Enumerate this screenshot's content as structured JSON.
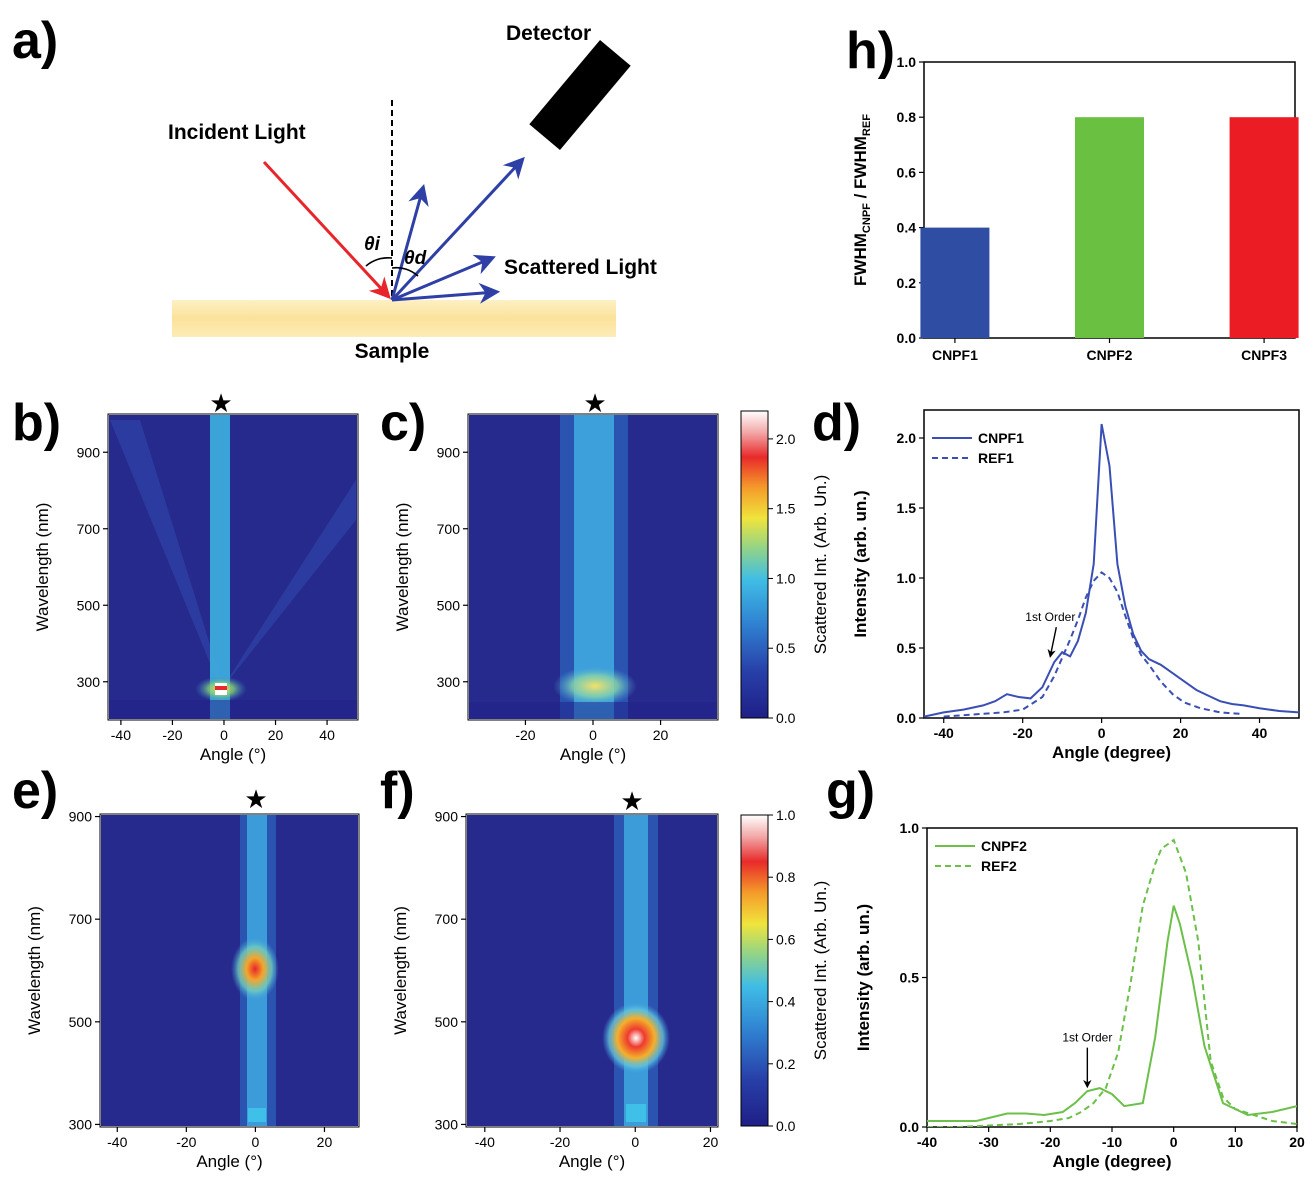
{
  "colors": {
    "blue_line": "#3a4fb4",
    "green_line": "#6cc04a",
    "bar_blue": "#2f4ea3",
    "bar_green": "#69c041",
    "bar_red": "#ec1c24",
    "incident_red": "#e8252b",
    "scatter_blue": "#2e3fa6",
    "sample_yellow": "#fbe39a"
  },
  "panel_a": {
    "letter": "a)",
    "detector": "Detector",
    "incident": "Incident Light",
    "scattered": "Scattered Light",
    "sample": "Sample",
    "theta_i": "θi",
    "theta_d": "θd"
  },
  "letters": {
    "b": "b)",
    "c": "c)",
    "d": "d)",
    "e": "e)",
    "f": "f)",
    "g": "g)",
    "h": "h)"
  },
  "star": "★",
  "chart_data": [
    {
      "id": "h",
      "type": "bar",
      "categories": [
        "CNPF1",
        "CNPF2",
        "CNPF3"
      ],
      "values": [
        0.4,
        0.8,
        0.8
      ],
      "bar_colors": [
        "#2f4ea3",
        "#69c041",
        "#ec1c24"
      ],
      "ylabel": "FWHM_CNPF / FWHM_REF",
      "ylabel_main1": "FWHM",
      "ylabel_sub1": "CNPF",
      "ylabel_mid": " / FWHM",
      "ylabel_sub2": "REF",
      "ylim": [
        0,
        1.0
      ],
      "yticks": [
        0.0,
        0.2,
        0.4,
        0.6,
        0.8,
        1.0
      ]
    },
    {
      "id": "d",
      "type": "line",
      "xlabel": "Angle (degree)",
      "ylabel": "Intensity (arb. un.)",
      "xlim": [
        -45,
        50
      ],
      "ylim": [
        0,
        2.2
      ],
      "xticks": [
        -40,
        -20,
        0,
        20,
        40
      ],
      "yticks": [
        0.0,
        0.5,
        1.0,
        1.5,
        2.0
      ],
      "annotation": "1st Order",
      "legend_position": "top-left",
      "series": [
        {
          "name": "CNPF1",
          "style": "solid",
          "x": [
            -45,
            -40,
            -35,
            -30,
            -27,
            -24,
            -21,
            -18,
            -15,
            -12,
            -10,
            -8,
            -6,
            -4,
            -2,
            0,
            2,
            4,
            6,
            8,
            10,
            12,
            15,
            18,
            21,
            24,
            27,
            30,
            33,
            36,
            40,
            45,
            50
          ],
          "y": [
            0.01,
            0.04,
            0.06,
            0.09,
            0.12,
            0.17,
            0.15,
            0.14,
            0.22,
            0.4,
            0.47,
            0.44,
            0.55,
            0.75,
            1.1,
            2.1,
            1.8,
            1.1,
            0.8,
            0.6,
            0.48,
            0.42,
            0.38,
            0.32,
            0.26,
            0.2,
            0.16,
            0.12,
            0.1,
            0.09,
            0.07,
            0.05,
            0.04
          ]
        },
        {
          "name": "REF1",
          "style": "dashed",
          "x": [
            -40,
            -35,
            -30,
            -25,
            -20,
            -15,
            -12,
            -10,
            -8,
            -6,
            -4,
            -2,
            0,
            2,
            4,
            6,
            8,
            10,
            12,
            15,
            18,
            21,
            25,
            30,
            35
          ],
          "y": [
            0.01,
            0.02,
            0.03,
            0.04,
            0.06,
            0.15,
            0.3,
            0.43,
            0.56,
            0.7,
            0.86,
            0.98,
            1.04,
            1.0,
            0.9,
            0.73,
            0.57,
            0.45,
            0.38,
            0.26,
            0.17,
            0.11,
            0.07,
            0.04,
            0.03
          ]
        }
      ]
    },
    {
      "id": "g",
      "type": "line",
      "xlabel": "Angle (degree)",
      "ylabel": "Intensity (arb. un.)",
      "xlim": [
        -40,
        20
      ],
      "ylim": [
        0,
        1.0
      ],
      "xticks": [
        -40,
        -30,
        -20,
        -10,
        0,
        10,
        20
      ],
      "yticks": [
        0.0,
        0.5,
        1.0
      ],
      "annotation": "1st Order",
      "legend_position": "top-left",
      "series": [
        {
          "name": "CNPF2",
          "style": "solid",
          "x": [
            -40,
            -35,
            -32,
            -30,
            -27,
            -24,
            -21,
            -18,
            -16,
            -14,
            -12,
            -10,
            -8,
            -5,
            -3,
            -1,
            0,
            1,
            3,
            5,
            8,
            12,
            16,
            20
          ],
          "y": [
            0.02,
            0.02,
            0.02,
            0.03,
            0.045,
            0.045,
            0.04,
            0.05,
            0.08,
            0.12,
            0.13,
            0.11,
            0.07,
            0.08,
            0.3,
            0.62,
            0.74,
            0.68,
            0.5,
            0.27,
            0.08,
            0.04,
            0.05,
            0.07
          ]
        },
        {
          "name": "REF2",
          "style": "dashed",
          "x": [
            -40,
            -35,
            -30,
            -25,
            -20,
            -17,
            -15,
            -13,
            -11,
            -9,
            -7,
            -5,
            -3,
            -2,
            0,
            2,
            4,
            6,
            8,
            10,
            13,
            16,
            20
          ],
          "y": [
            0.0,
            0.0,
            0.005,
            0.01,
            0.02,
            0.03,
            0.05,
            0.08,
            0.13,
            0.25,
            0.48,
            0.74,
            0.88,
            0.93,
            0.96,
            0.85,
            0.62,
            0.22,
            0.1,
            0.06,
            0.04,
            0.02,
            0.01
          ]
        }
      ]
    },
    {
      "id": "b",
      "type": "heatmap",
      "xlabel": "Angle (°)",
      "ylabel": "Wavelength (nm)",
      "xlim": [
        -45,
        52
      ],
      "ylim": [
        200,
        1000
      ],
      "xticks": [
        -40,
        -20,
        0,
        20,
        40
      ],
      "yticks": [
        300,
        500,
        700,
        900
      ]
    },
    {
      "id": "c",
      "type": "heatmap",
      "xlabel": "Angle (°)",
      "ylabel": "Wavelength (nm)",
      "xlim": [
        -37,
        37
      ],
      "ylim": [
        200,
        1000
      ],
      "xticks": [
        -20,
        0,
        20
      ],
      "yticks": [
        300,
        500,
        700,
        900
      ],
      "colorbar": {
        "label": "Scattered Int. (Arb. Un.)",
        "ticks": [
          0.0,
          0.5,
          1.0,
          1.5,
          2.0
        ],
        "range": [
          0,
          2.2
        ]
      }
    },
    {
      "id": "e",
      "type": "heatmap",
      "xlabel": "Angle (°)",
      "ylabel": "Wavelength (nm)",
      "xlim": [
        -45,
        30
      ],
      "ylim": [
        295,
        905
      ],
      "xticks": [
        -40,
        -20,
        0,
        20
      ],
      "yticks": [
        300,
        500,
        700,
        900
      ]
    },
    {
      "id": "f",
      "type": "heatmap",
      "xlabel": "Angle (°)",
      "ylabel": "Wavelength (nm)",
      "xlim": [
        -45,
        22
      ],
      "ylim": [
        295,
        905
      ],
      "xticks": [
        -40,
        -20,
        0,
        20
      ],
      "yticks": [
        300,
        500,
        700,
        900
      ],
      "colorbar": {
        "label": "Scattered Int. (Arb. Un.)",
        "ticks": [
          0.0,
          0.2,
          0.4,
          0.6,
          0.8,
          1.0
        ],
        "range": [
          0,
          1.0
        ]
      }
    }
  ]
}
